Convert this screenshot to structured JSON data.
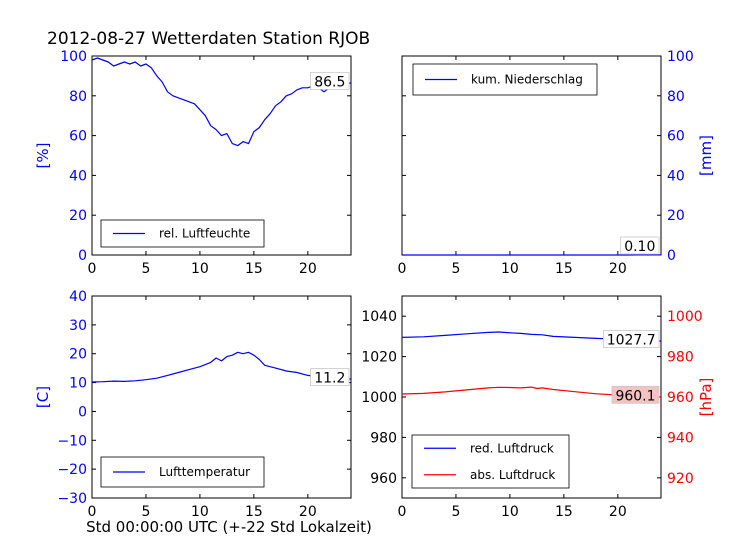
{
  "figure": {
    "title": "2012-08-27 Wetterdaten Station RJOB",
    "xlabel": "Std 00:00:00 UTC (+-22 Std Lokalzeit)"
  },
  "colors": {
    "blue": "#0000ff",
    "red": "#ff0000",
    "axis": "#000000",
    "highlight": "#f4c2c2"
  },
  "chart_data": [
    {
      "type": "line",
      "panel": "top-left",
      "xlim": [
        0,
        24
      ],
      "ylim": [
        0,
        100
      ],
      "xticks": [
        "0",
        "5",
        "10",
        "15",
        "20"
      ],
      "xtick_values": [
        0,
        5,
        10,
        15,
        20
      ],
      "yticks": [
        "0",
        "20",
        "40",
        "60",
        "80",
        "100"
      ],
      "ytick_values": [
        0,
        20,
        40,
        60,
        80,
        100
      ],
      "ytick_side": "left",
      "ytick_color": "blue",
      "ylabel": "[%]",
      "ylabel_side": "left",
      "ylabel_color": "blue",
      "legend_placement": "lower-left",
      "last_value_label": "86.5",
      "last_value_box": "plain",
      "series": [
        {
          "name": "rel. Luftfeuchte",
          "color": "blue",
          "x": [
            0,
            0.5,
            1,
            1.5,
            2,
            2.5,
            3,
            3.5,
            4,
            4.5,
            5,
            5.5,
            6,
            6.5,
            7,
            7.5,
            8,
            8.5,
            9,
            9.5,
            10,
            10.5,
            11,
            11.5,
            12,
            12.5,
            13,
            13.5,
            14,
            14.5,
            15,
            15.5,
            16,
            16.5,
            17,
            17.5,
            18,
            18.5,
            19,
            19.5,
            20,
            20.5,
            21,
            21.5,
            22,
            22.5,
            23,
            23.5,
            24
          ],
          "y": [
            98,
            99,
            98,
            97,
            95,
            96,
            97,
            96,
            97,
            95,
            96,
            94,
            90,
            87,
            82,
            80,
            79,
            78,
            77,
            76,
            73,
            70,
            65,
            63,
            60,
            61,
            56,
            55,
            57,
            56,
            62,
            64,
            68,
            71,
            75,
            77,
            80,
            81,
            83,
            84,
            84,
            85,
            84,
            82,
            84,
            86,
            87,
            86,
            86.5
          ]
        }
      ]
    },
    {
      "type": "line",
      "panel": "top-right",
      "xlim": [
        0,
        24
      ],
      "ylim": [
        0,
        100
      ],
      "xticks": [
        "0",
        "5",
        "10",
        "15",
        "20"
      ],
      "xtick_values": [
        0,
        5,
        10,
        15,
        20
      ],
      "yticks": [
        "0",
        "20",
        "40",
        "60",
        "80",
        "100"
      ],
      "ytick_values": [
        0,
        20,
        40,
        60,
        80,
        100
      ],
      "ytick_side": "right",
      "ytick_color": "blue",
      "ylabel": "[mm]",
      "ylabel_side": "right",
      "ylabel_color": "blue",
      "legend_placement": "upper-left",
      "last_value_label": "0.10",
      "last_value_box": "plain",
      "series": [
        {
          "name": "kum. Niederschlag",
          "color": "blue",
          "x": [
            0,
            5,
            10,
            15,
            20,
            21,
            22,
            23,
            24
          ],
          "y": [
            0,
            0,
            0,
            0,
            0,
            0.02,
            0.05,
            0.08,
            0.1
          ]
        }
      ]
    },
    {
      "type": "line",
      "panel": "bottom-left",
      "xlim": [
        0,
        24
      ],
      "ylim": [
        -30,
        40
      ],
      "xticks": [
        "0",
        "5",
        "10",
        "15",
        "20"
      ],
      "xtick_values": [
        0,
        5,
        10,
        15,
        20
      ],
      "yticks": [
        "−30",
        "−20",
        "−10",
        "0",
        "10",
        "20",
        "30",
        "40"
      ],
      "ytick_values": [
        -30,
        -20,
        -10,
        0,
        10,
        20,
        30,
        40
      ],
      "ytick_side": "left",
      "ytick_color": "blue",
      "ylabel": "[C]",
      "ylabel_side": "left",
      "ylabel_color": "blue",
      "legend_placement": "lower-left",
      "last_value_label": "11.2",
      "last_value_box": "plain",
      "series": [
        {
          "name": "Lufttemperatur",
          "color": "blue",
          "x": [
            0,
            1,
            2,
            3,
            4,
            5,
            6,
            7,
            8,
            9,
            10,
            11,
            11.5,
            12,
            12.5,
            13,
            13.5,
            14,
            14.5,
            15,
            15.5,
            16,
            17,
            18,
            19,
            20,
            21,
            22,
            23,
            24
          ],
          "y": [
            10.2,
            10.3,
            10.5,
            10.4,
            10.6,
            11,
            11.5,
            12.5,
            13.5,
            14.5,
            15.5,
            17,
            18.5,
            17.5,
            19,
            19.5,
            20.5,
            20,
            20.5,
            19.5,
            18,
            16,
            15,
            14,
            13.5,
            12.5,
            12,
            12.5,
            11.5,
            11.2
          ]
        }
      ]
    },
    {
      "type": "line",
      "panel": "bottom-right",
      "xlim": [
        0,
        24
      ],
      "ylim": [
        950,
        1050
      ],
      "xticks": [
        "0",
        "5",
        "10",
        "15",
        "20"
      ],
      "xtick_values": [
        0,
        5,
        10,
        15,
        20
      ],
      "yticks": [
        "960",
        "980",
        "1000",
        "1020",
        "1040"
      ],
      "ytick_values": [
        960,
        980,
        1000,
        1020,
        1040
      ],
      "ytick_side": "left",
      "ytick_color": "black",
      "y2lim": [
        910,
        1010
      ],
      "y2ticks": [
        "920",
        "940",
        "960",
        "980",
        "1000"
      ],
      "y2tick_values": [
        920,
        940,
        960,
        980,
        1000
      ],
      "y2tick_color": "red",
      "ylabel": "[hPa]",
      "ylabel_side": "right",
      "ylabel_color": "red",
      "legend_placement": "lower-left",
      "series": [
        {
          "name": "red. Luftdruck",
          "color": "blue",
          "axis": "y",
          "x": [
            0,
            2,
            4,
            6,
            8,
            9,
            10,
            11,
            12,
            13,
            14,
            16,
            18,
            20,
            22,
            24
          ],
          "y": [
            1029.5,
            1029.8,
            1030.5,
            1031.3,
            1032,
            1032.2,
            1031.8,
            1031.5,
            1031,
            1030.8,
            1030,
            1029.5,
            1029,
            1028.6,
            1028.3,
            1027.7
          ],
          "last_value_label": "1027.7",
          "last_value_box": "plain"
        },
        {
          "name": "abs. Luftdruck",
          "color": "red",
          "axis": "y2",
          "x": [
            0,
            2,
            4,
            6,
            8,
            9,
            10,
            11,
            12,
            12.5,
            13,
            14,
            16,
            18,
            20,
            22,
            24
          ],
          "y": [
            961.5,
            961.8,
            962.5,
            963.5,
            964.5,
            964.8,
            964.7,
            964.5,
            964.9,
            964.2,
            964.5,
            963.7,
            962.6,
            961.6,
            961.0,
            960.6,
            960.1
          ],
          "last_value_label": "960.1",
          "last_value_box": "highlight"
        }
      ]
    }
  ]
}
